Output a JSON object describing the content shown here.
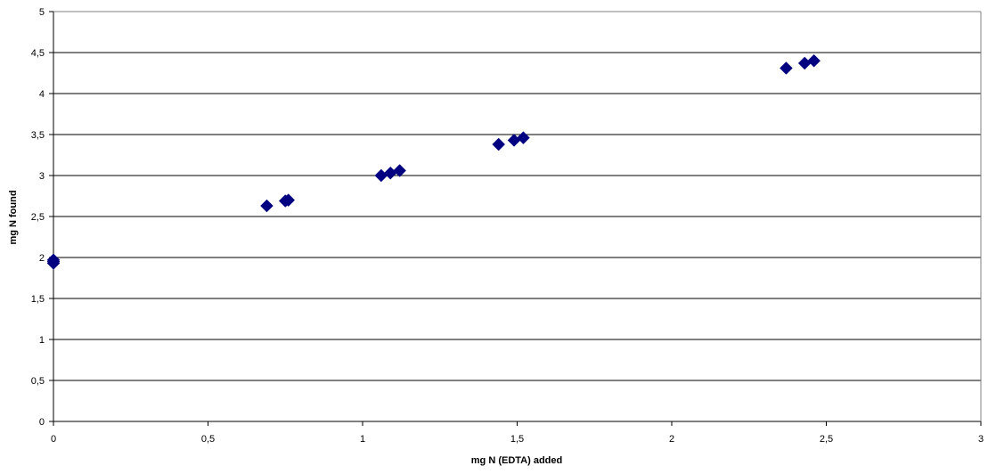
{
  "chart_data": {
    "type": "scatter",
    "xlabel": "mg N (EDTA) added",
    "ylabel": "mg N found",
    "xlim": [
      0,
      3
    ],
    "ylim": [
      0,
      5
    ],
    "x_ticks": [
      "0",
      "0,5",
      "1",
      "1,5",
      "2",
      "2,5",
      "3"
    ],
    "y_ticks": [
      "0",
      "0,5",
      "1",
      "1,5",
      "2",
      "2,5",
      "3",
      "3,5",
      "4",
      "4,5",
      "5"
    ],
    "grid": "horizontal",
    "legend": "none",
    "marker": "diamond",
    "marker_color": "#000080",
    "series": [
      {
        "points": [
          [
            0.0,
            1.93
          ],
          [
            0.0,
            1.95
          ],
          [
            0.0,
            1.97
          ],
          [
            0.69,
            2.63
          ],
          [
            0.75,
            2.69
          ],
          [
            0.76,
            2.7
          ],
          [
            1.06,
            3.0
          ],
          [
            1.09,
            3.03
          ],
          [
            1.12,
            3.06
          ],
          [
            1.44,
            3.38
          ],
          [
            1.49,
            3.43
          ],
          [
            1.52,
            3.46
          ],
          [
            2.37,
            4.31
          ],
          [
            2.43,
            4.37
          ],
          [
            2.46,
            4.4
          ]
        ]
      }
    ]
  }
}
